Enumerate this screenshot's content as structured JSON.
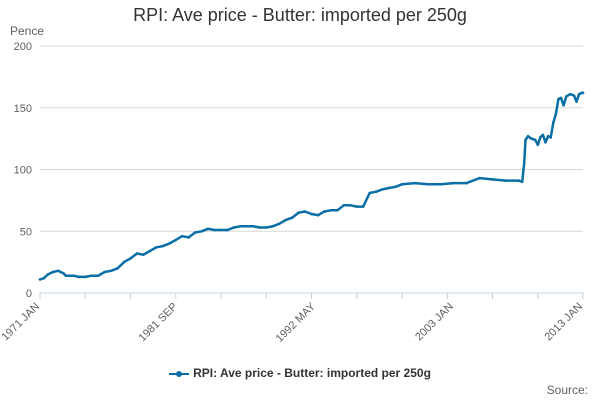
{
  "chart_data": {
    "type": "line",
    "title": "RPI: Ave price - Butter: imported per 250g",
    "ylabel": "Pence",
    "ylim": [
      0,
      200
    ],
    "yticks": [
      0,
      50,
      100,
      150,
      200
    ],
    "x_tick_labels": [
      "1971 JAN",
      "1981 SEP",
      "1992 MAY",
      "2003 JAN",
      "2013 JAN"
    ],
    "x_tick_values": [
      1971.0,
      1981.67,
      1992.33,
      2003.0,
      2013.0
    ],
    "xlim": [
      1971.0,
      2013.0
    ],
    "grid": true,
    "legend_position": "bottom",
    "series": [
      {
        "name": "RPI: Ave price - Butter: imported per 250g",
        "color": "#0b6fa7",
        "x": [
          1971.0,
          1971.3,
          1971.6,
          1972.0,
          1972.4,
          1972.8,
          1973.0,
          1973.3,
          1973.6,
          1974.0,
          1974.5,
          1975.0,
          1975.5,
          1976.0,
          1976.5,
          1977.0,
          1977.5,
          1978.0,
          1978.5,
          1979.0,
          1979.5,
          1980.0,
          1980.5,
          1981.0,
          1981.5,
          1982.0,
          1982.5,
          1983.0,
          1983.5,
          1984.0,
          1984.5,
          1985.0,
          1985.5,
          1986.0,
          1986.5,
          1987.0,
          1987.5,
          1988.0,
          1988.5,
          1989.0,
          1989.5,
          1990.0,
          1990.5,
          1991.0,
          1991.5,
          1992.0,
          1992.5,
          1993.0,
          1993.5,
          1994.0,
          1994.5,
          1995.0,
          1995.5,
          1996.0,
          1996.5,
          1997.0,
          1997.5,
          1998.0,
          1998.5,
          1999.0,
          2000.0,
          2001.0,
          2002.0,
          2003.0,
          2004.0,
          2005.0,
          2006.0,
          2007.0,
          2008.0,
          2008.3,
          2008.45,
          2008.55,
          2008.75,
          2009.0,
          2009.3,
          2009.5,
          2009.7,
          2009.9,
          2010.1,
          2010.3,
          2010.5,
          2010.7,
          2010.9,
          2011.1,
          2011.3,
          2011.5,
          2011.7,
          2012.0,
          2012.3,
          2012.5,
          2012.7,
          2012.9,
          2013.0
        ],
        "y": [
          11,
          12,
          15,
          17,
          18,
          16,
          14,
          14,
          14,
          13,
          13,
          14,
          14,
          17,
          18,
          20,
          25,
          28,
          32,
          31,
          34,
          37,
          38,
          40,
          43,
          46,
          45,
          49,
          50,
          52,
          51,
          51,
          51,
          53,
          54,
          54,
          54,
          53,
          53,
          54,
          56,
          59,
          61,
          65,
          66,
          64,
          63,
          66,
          67,
          67,
          71,
          71,
          70,
          70,
          81,
          82,
          84,
          85,
          86,
          88,
          89,
          88,
          88,
          89,
          89,
          93,
          92,
          91,
          91,
          90,
          105,
          124,
          127,
          125,
          124,
          120,
          126,
          128,
          122,
          127,
          126,
          138,
          145,
          157,
          158,
          152,
          159,
          161,
          160,
          155,
          161,
          162,
          162
        ]
      }
    ]
  },
  "legend": {
    "label": "RPI: Ave price - Butter: imported per 250g"
  },
  "source": {
    "label": "Source:"
  }
}
